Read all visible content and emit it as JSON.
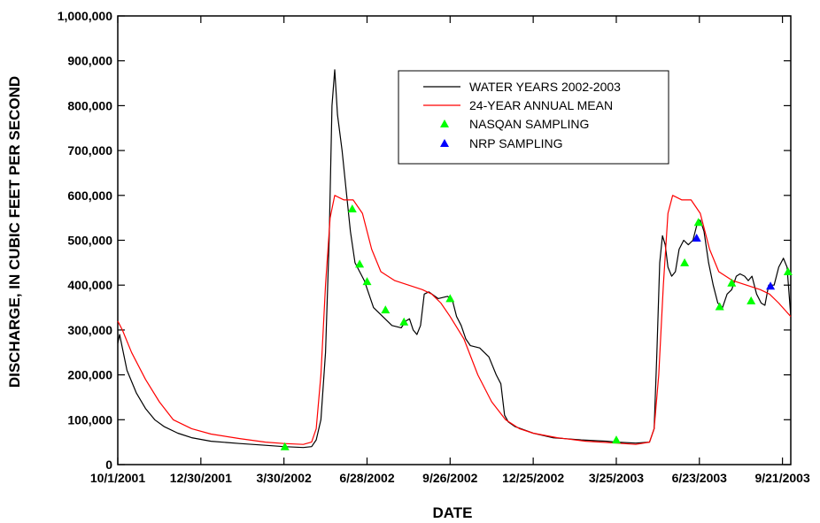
{
  "chart_data": {
    "type": "line",
    "xlabel": "DATE",
    "ylabel": "DISCHARGE, IN CUBIC FEET PER SECOND",
    "ylim": [
      0,
      1000000
    ],
    "xlim": [
      "2001-10-01",
      "2003-09-30"
    ],
    "x_tick_labels": [
      "10/1/2001",
      "12/30/2001",
      "3/30/2002",
      "6/28/2002",
      "9/26/2002",
      "12/25/2002",
      "3/25/2003",
      "6/23/2003",
      "9/21/2003"
    ],
    "x_tick_dates": [
      "2001-10-01",
      "2001-12-30",
      "2002-03-30",
      "2002-06-28",
      "2002-09-26",
      "2002-12-25",
      "2003-03-25",
      "2003-06-23",
      "2003-09-21"
    ],
    "y_ticks": [
      0,
      100000,
      200000,
      300000,
      400000,
      500000,
      600000,
      700000,
      800000,
      900000,
      1000000
    ],
    "y_tick_labels": [
      "0",
      "100,000",
      "200,000",
      "300,000",
      "400,000",
      "500,000",
      "600,000",
      "700,000",
      "800,000",
      "900,000",
      "1,000,000"
    ],
    "grid": false,
    "legend_position": "top-right",
    "series": [
      {
        "name": "WATER YEARS 2002-2003",
        "color": "#000000",
        "points": [
          [
            "2001-10-01",
            270000
          ],
          [
            "2001-10-03",
            290000
          ],
          [
            "2001-10-06",
            260000
          ],
          [
            "2001-10-11",
            210000
          ],
          [
            "2001-10-21",
            160000
          ],
          [
            "2001-10-31",
            125000
          ],
          [
            "2001-11-10",
            100000
          ],
          [
            "2001-11-20",
            85000
          ],
          [
            "2001-12-05",
            70000
          ],
          [
            "2001-12-20",
            60000
          ],
          [
            "2002-01-10",
            52000
          ],
          [
            "2002-02-10",
            47000
          ],
          [
            "2002-03-10",
            43000
          ],
          [
            "2002-03-30",
            40000
          ],
          [
            "2002-04-20",
            38000
          ],
          [
            "2002-04-29",
            40000
          ],
          [
            "2002-05-04",
            55000
          ],
          [
            "2002-05-09",
            100000
          ],
          [
            "2002-05-14",
            250000
          ],
          [
            "2002-05-18",
            500000
          ],
          [
            "2002-05-21",
            800000
          ],
          [
            "2002-05-24",
            880000
          ],
          [
            "2002-05-27",
            780000
          ],
          [
            "2002-06-01",
            700000
          ],
          [
            "2002-06-06",
            600000
          ],
          [
            "2002-06-10",
            520000
          ],
          [
            "2002-06-15",
            450000
          ],
          [
            "2002-06-25",
            410000
          ],
          [
            "2002-07-05",
            350000
          ],
          [
            "2002-07-15",
            330000
          ],
          [
            "2002-07-25",
            310000
          ],
          [
            "2002-08-04",
            305000
          ],
          [
            "2002-08-09",
            320000
          ],
          [
            "2002-08-13",
            325000
          ],
          [
            "2002-08-17",
            300000
          ],
          [
            "2002-08-21",
            290000
          ],
          [
            "2002-08-25",
            310000
          ],
          [
            "2002-08-29",
            380000
          ],
          [
            "2002-09-03",
            385000
          ],
          [
            "2002-09-13",
            370000
          ],
          [
            "2002-09-23",
            375000
          ],
          [
            "2002-09-28",
            370000
          ],
          [
            "2002-10-03",
            330000
          ],
          [
            "2002-10-08",
            310000
          ],
          [
            "2002-10-13",
            280000
          ],
          [
            "2002-10-18",
            265000
          ],
          [
            "2002-10-28",
            260000
          ],
          [
            "2002-11-07",
            240000
          ],
          [
            "2002-11-15",
            200000
          ],
          [
            "2002-11-20",
            180000
          ],
          [
            "2002-11-24",
            110000
          ],
          [
            "2002-11-28",
            95000
          ],
          [
            "2002-12-05",
            85000
          ],
          [
            "2002-12-25",
            70000
          ],
          [
            "2003-01-15",
            60000
          ],
          [
            "2003-02-15",
            55000
          ],
          [
            "2003-03-15",
            52000
          ],
          [
            "2003-03-25",
            50000
          ],
          [
            "2003-04-15",
            48000
          ],
          [
            "2003-04-30",
            50000
          ],
          [
            "2003-05-05",
            80000
          ],
          [
            "2003-05-08",
            250000
          ],
          [
            "2003-05-11",
            450000
          ],
          [
            "2003-05-14",
            510000
          ],
          [
            "2003-05-17",
            490000
          ],
          [
            "2003-05-20",
            440000
          ],
          [
            "2003-05-24",
            420000
          ],
          [
            "2003-05-28",
            430000
          ],
          [
            "2003-06-01",
            480000
          ],
          [
            "2003-06-06",
            500000
          ],
          [
            "2003-06-11",
            490000
          ],
          [
            "2003-06-16",
            500000
          ],
          [
            "2003-06-21",
            540000
          ],
          [
            "2003-06-24",
            545000
          ],
          [
            "2003-06-28",
            520000
          ],
          [
            "2003-07-03",
            450000
          ],
          [
            "2003-07-08",
            400000
          ],
          [
            "2003-07-13",
            360000
          ],
          [
            "2003-07-18",
            350000
          ],
          [
            "2003-07-23",
            380000
          ],
          [
            "2003-07-28",
            390000
          ],
          [
            "2003-08-02",
            420000
          ],
          [
            "2003-08-06",
            425000
          ],
          [
            "2003-08-11",
            420000
          ],
          [
            "2003-08-15",
            410000
          ],
          [
            "2003-08-19",
            420000
          ],
          [
            "2003-08-24",
            380000
          ],
          [
            "2003-08-29",
            360000
          ],
          [
            "2003-09-02",
            355000
          ],
          [
            "2003-09-06",
            400000
          ],
          [
            "2003-09-12",
            400000
          ],
          [
            "2003-09-17",
            440000
          ],
          [
            "2003-09-22",
            460000
          ],
          [
            "2003-09-26",
            440000
          ],
          [
            "2003-09-30",
            330000
          ]
        ]
      },
      {
        "name": "24-YEAR ANNUAL MEAN",
        "color": "#ff0000",
        "points": [
          [
            "2001-10-01",
            320000
          ],
          [
            "2001-10-06",
            300000
          ],
          [
            "2001-10-16",
            250000
          ],
          [
            "2001-10-31",
            190000
          ],
          [
            "2001-11-15",
            140000
          ],
          [
            "2001-11-30",
            100000
          ],
          [
            "2001-12-20",
            80000
          ],
          [
            "2002-01-10",
            68000
          ],
          [
            "2002-02-10",
            58000
          ],
          [
            "2002-03-10",
            50000
          ],
          [
            "2002-03-30",
            47000
          ],
          [
            "2002-04-20",
            45000
          ],
          [
            "2002-04-29",
            50000
          ],
          [
            "2002-05-04",
            80000
          ],
          [
            "2002-05-09",
            200000
          ],
          [
            "2002-05-14",
            400000
          ],
          [
            "2002-05-19",
            550000
          ],
          [
            "2002-05-24",
            600000
          ],
          [
            "2002-06-03",
            590000
          ],
          [
            "2002-06-13",
            590000
          ],
          [
            "2002-06-23",
            560000
          ],
          [
            "2002-07-03",
            480000
          ],
          [
            "2002-07-13",
            430000
          ],
          [
            "2002-07-28",
            410000
          ],
          [
            "2002-08-12",
            400000
          ],
          [
            "2002-08-27",
            390000
          ],
          [
            "2002-09-06",
            380000
          ],
          [
            "2002-09-16",
            360000
          ],
          [
            "2002-09-26",
            330000
          ],
          [
            "2002-10-11",
            280000
          ],
          [
            "2002-10-26",
            200000
          ],
          [
            "2002-11-10",
            140000
          ],
          [
            "2002-11-25",
            100000
          ],
          [
            "2002-12-10",
            80000
          ],
          [
            "2002-12-25",
            70000
          ],
          [
            "2003-01-20",
            60000
          ],
          [
            "2003-02-20",
            52000
          ],
          [
            "2003-03-25",
            48000
          ],
          [
            "2003-04-15",
            45000
          ],
          [
            "2003-04-30",
            50000
          ],
          [
            "2003-05-05",
            80000
          ],
          [
            "2003-05-10",
            200000
          ],
          [
            "2003-05-15",
            400000
          ],
          [
            "2003-05-20",
            560000
          ],
          [
            "2003-05-25",
            600000
          ],
          [
            "2003-06-04",
            590000
          ],
          [
            "2003-06-14",
            590000
          ],
          [
            "2003-06-24",
            560000
          ],
          [
            "2003-07-04",
            480000
          ],
          [
            "2003-07-14",
            430000
          ],
          [
            "2003-07-29",
            410000
          ],
          [
            "2003-08-13",
            400000
          ],
          [
            "2003-08-28",
            390000
          ],
          [
            "2003-09-07",
            380000
          ],
          [
            "2003-09-17",
            360000
          ],
          [
            "2003-09-30",
            330000
          ]
        ]
      }
    ],
    "markers": [
      {
        "name": "NASQAN SAMPLING",
        "color": "#00ff00",
        "points": [
          [
            "2002-03-31",
            40000
          ],
          [
            "2002-06-12",
            570000
          ],
          [
            "2002-06-20",
            447000
          ],
          [
            "2002-06-28",
            408000
          ],
          [
            "2002-07-18",
            345000
          ],
          [
            "2002-08-07",
            318000
          ],
          [
            "2002-09-26",
            370000
          ],
          [
            "2003-03-25",
            55000
          ],
          [
            "2003-06-07",
            450000
          ],
          [
            "2003-06-22",
            540000
          ],
          [
            "2003-07-15",
            352000
          ],
          [
            "2003-07-28",
            405000
          ],
          [
            "2003-08-18",
            365000
          ],
          [
            "2003-09-27",
            430000
          ]
        ]
      },
      {
        "name": "NRP SAMPLING",
        "color": "#0000ff",
        "points": [
          [
            "2003-06-20",
            505000
          ],
          [
            "2003-09-08",
            398000
          ]
        ]
      }
    ]
  }
}
